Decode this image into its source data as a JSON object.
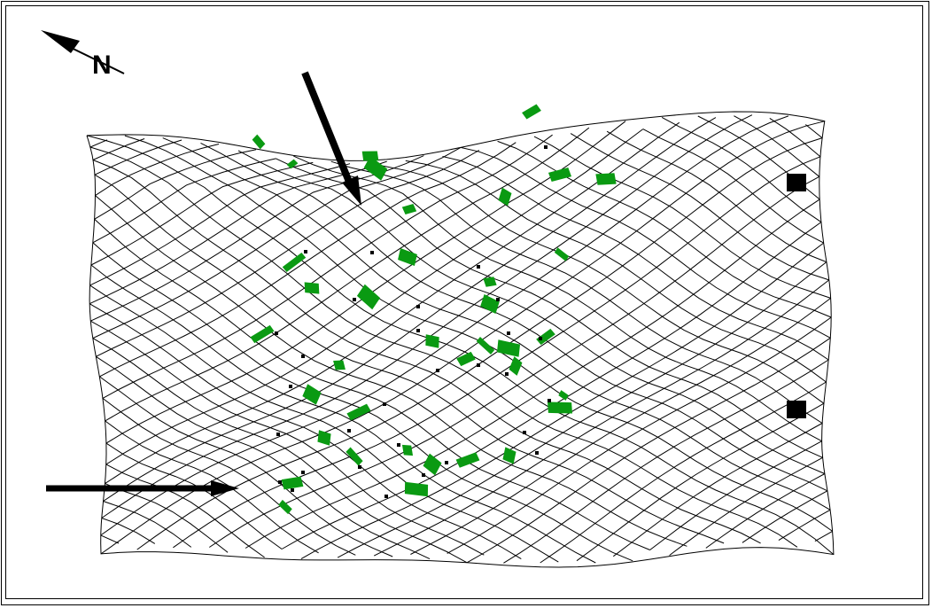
{
  "compass": {
    "label": "N"
  },
  "colors": {
    "mesh": "#000000",
    "patch": "#0a9a12",
    "marker": "#000000"
  },
  "icons": [
    "north-arrow-icon",
    "pointer-arrow-icon"
  ]
}
